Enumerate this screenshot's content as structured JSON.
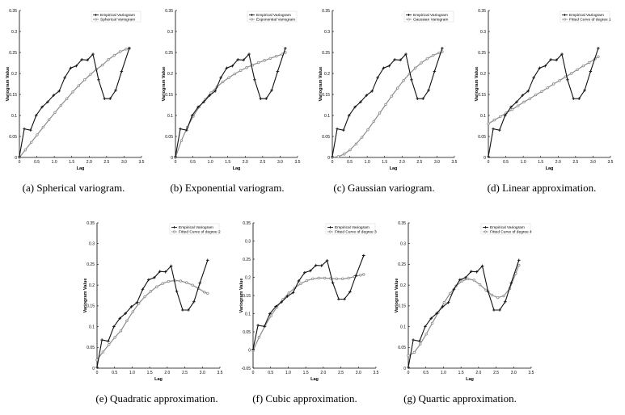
{
  "chart_data": [
    {
      "id": "a",
      "type": "line",
      "caption": "(a)  Spherical variogram.",
      "xlabel": "Lag",
      "ylabel": "Variogram Value",
      "xlim": [
        0,
        3.5
      ],
      "ylim": [
        0,
        0.35
      ],
      "xticks": [
        "0",
        "0.5",
        "1.0",
        "1.5",
        "2.0",
        "2.5",
        "3.0",
        "3.5"
      ],
      "yticks": [
        "0",
        "0.05",
        "0.1",
        "0.15",
        "0.2",
        "0.25",
        "0.3",
        "0.35"
      ],
      "legend": [
        "Empirical Variogram",
        "Spherical Variogram"
      ],
      "series": [
        {
          "name": "Empirical Variogram",
          "style": "empirical",
          "x": [
            0,
            0.14,
            0.32,
            0.48,
            0.65,
            0.81,
            0.98,
            1.14,
            1.3,
            1.47,
            1.63,
            1.79,
            1.95,
            2.11,
            2.27,
            2.44,
            2.6,
            2.76,
            2.93,
            3.15
          ],
          "y": [
            0.002,
            0.068,
            0.065,
            0.1,
            0.12,
            0.132,
            0.148,
            0.158,
            0.19,
            0.213,
            0.218,
            0.233,
            0.232,
            0.246,
            0.185,
            0.14,
            0.14,
            0.16,
            0.205,
            0.26
          ]
        },
        {
          "name": "Spherical Variogram",
          "style": "fitted",
          "x": [
            0,
            0.17,
            0.34,
            0.51,
            0.68,
            0.85,
            1.02,
            1.19,
            1.36,
            1.53,
            1.7,
            1.87,
            2.04,
            2.21,
            2.38,
            2.55,
            2.72,
            2.89,
            3.06,
            3.15
          ],
          "y": [
            0.0,
            0.018,
            0.036,
            0.054,
            0.072,
            0.09,
            0.107,
            0.124,
            0.14,
            0.156,
            0.171,
            0.185,
            0.198,
            0.21,
            0.22,
            0.233,
            0.243,
            0.252,
            0.258,
            0.26
          ]
        }
      ]
    },
    {
      "id": "b",
      "type": "line",
      "caption": "(b)  Exponential variogram.",
      "xlabel": "Lag",
      "ylabel": "Variogram Value",
      "xlim": [
        0,
        3.5
      ],
      "ylim": [
        0,
        0.35
      ],
      "xticks": [
        "0",
        "0.5",
        "1.0",
        "1.5",
        "2.0",
        "2.5",
        "3.0",
        "3.5"
      ],
      "yticks": [
        "0",
        "0.05",
        "0.1",
        "0.15",
        "0.2",
        "0.25",
        "0.3",
        "0.35"
      ],
      "legend": [
        "Empirical Variogram",
        "Exponential Variogram"
      ],
      "series": [
        {
          "name": "Empirical Variogram",
          "style": "empirical",
          "x": [
            0,
            0.14,
            0.32,
            0.48,
            0.65,
            0.81,
            0.98,
            1.14,
            1.3,
            1.47,
            1.63,
            1.79,
            1.95,
            2.11,
            2.27,
            2.44,
            2.6,
            2.76,
            2.93,
            3.15
          ],
          "y": [
            0.002,
            0.068,
            0.065,
            0.1,
            0.12,
            0.132,
            0.148,
            0.158,
            0.19,
            0.213,
            0.218,
            0.233,
            0.232,
            0.246,
            0.185,
            0.14,
            0.14,
            0.16,
            0.205,
            0.26
          ]
        },
        {
          "name": "Exponential Variogram",
          "style": "fitted",
          "x": [
            0,
            0.17,
            0.34,
            0.51,
            0.68,
            0.85,
            1.02,
            1.19,
            1.36,
            1.53,
            1.7,
            1.87,
            2.04,
            2.21,
            2.38,
            2.55,
            2.72,
            2.89,
            3.06,
            3.15
          ],
          "y": [
            0.0,
            0.04,
            0.072,
            0.098,
            0.12,
            0.138,
            0.154,
            0.168,
            0.18,
            0.19,
            0.199,
            0.207,
            0.214,
            0.22,
            0.226,
            0.231,
            0.236,
            0.241,
            0.246,
            0.25
          ]
        }
      ]
    },
    {
      "id": "c",
      "type": "line",
      "caption": "(c)  Gaussian variogram.",
      "xlabel": "Lag",
      "ylabel": "Variogram Value",
      "xlim": [
        0,
        3.5
      ],
      "ylim": [
        0,
        0.35
      ],
      "xticks": [
        "0",
        "0.5",
        "1.0",
        "1.5",
        "2.0",
        "2.5",
        "3.0",
        "3.5"
      ],
      "yticks": [
        "0",
        "0.05",
        "0.1",
        "0.15",
        "0.2",
        "0.25",
        "0.3",
        "0.35"
      ],
      "legend": [
        "Empirical Variogram",
        "Gaussian Variogram"
      ],
      "series": [
        {
          "name": "Empirical Variogram",
          "style": "empirical",
          "x": [
            0,
            0.14,
            0.32,
            0.48,
            0.65,
            0.81,
            0.98,
            1.14,
            1.3,
            1.47,
            1.63,
            1.79,
            1.95,
            2.11,
            2.27,
            2.44,
            2.6,
            2.76,
            2.93,
            3.15
          ],
          "y": [
            0.002,
            0.068,
            0.065,
            0.1,
            0.12,
            0.132,
            0.148,
            0.158,
            0.19,
            0.213,
            0.218,
            0.233,
            0.232,
            0.246,
            0.185,
            0.14,
            0.14,
            0.16,
            0.205,
            0.26
          ]
        },
        {
          "name": "Gaussian Variogram",
          "style": "fitted",
          "x": [
            0,
            0.17,
            0.34,
            0.51,
            0.68,
            0.85,
            1.02,
            1.19,
            1.36,
            1.53,
            1.7,
            1.87,
            2.04,
            2.21,
            2.38,
            2.55,
            2.72,
            2.89,
            3.06,
            3.15
          ],
          "y": [
            0.0,
            0.002,
            0.008,
            0.018,
            0.032,
            0.048,
            0.066,
            0.086,
            0.106,
            0.126,
            0.146,
            0.165,
            0.183,
            0.199,
            0.213,
            0.225,
            0.235,
            0.243,
            0.249,
            0.252
          ]
        }
      ]
    },
    {
      "id": "d",
      "type": "line",
      "caption": "(d)  Linear approximation.",
      "xlabel": "Lag",
      "ylabel": "Variogram Value",
      "xlim": [
        0,
        3.5
      ],
      "ylim": [
        0,
        0.35
      ],
      "xticks": [
        "0",
        "0.5",
        "1.0",
        "1.5",
        "2.0",
        "2.5",
        "3.0",
        "3.5"
      ],
      "yticks": [
        "0",
        "0.05",
        "0.1",
        "0.15",
        "0.2",
        "0.25",
        "0.3",
        "0.35"
      ],
      "legend": [
        "Empirical Variogram",
        "Fitted Curve of degree 1"
      ],
      "series": [
        {
          "name": "Empirical Variogram",
          "style": "empirical",
          "x": [
            0,
            0.14,
            0.32,
            0.48,
            0.65,
            0.81,
            0.98,
            1.14,
            1.3,
            1.47,
            1.63,
            1.79,
            1.95,
            2.11,
            2.27,
            2.44,
            2.6,
            2.76,
            2.93,
            3.15
          ],
          "y": [
            0.002,
            0.068,
            0.065,
            0.1,
            0.12,
            0.132,
            0.148,
            0.158,
            0.19,
            0.213,
            0.218,
            0.233,
            0.232,
            0.246,
            0.185,
            0.14,
            0.14,
            0.16,
            0.205,
            0.26
          ]
        },
        {
          "name": "Fitted Curve of degree 1",
          "style": "fitted",
          "x": [
            0,
            0.17,
            0.34,
            0.51,
            0.68,
            0.85,
            1.02,
            1.19,
            1.36,
            1.53,
            1.7,
            1.87,
            2.04,
            2.21,
            2.38,
            2.55,
            2.72,
            2.89,
            3.06,
            3.15
          ],
          "y": [
            0.08,
            0.089,
            0.097,
            0.106,
            0.114,
            0.123,
            0.132,
            0.14,
            0.149,
            0.157,
            0.166,
            0.175,
            0.183,
            0.192,
            0.2,
            0.209,
            0.218,
            0.226,
            0.235,
            0.24
          ]
        }
      ]
    },
    {
      "id": "e",
      "type": "line",
      "caption": "(e)  Quadratic approximation.",
      "xlabel": "Lag",
      "ylabel": "Variogram Value",
      "xlim": [
        0,
        3.5
      ],
      "ylim": [
        0,
        0.35
      ],
      "xticks": [
        "0",
        "0.5",
        "1.0",
        "1.5",
        "2.0",
        "2.5",
        "3.0",
        "3.5"
      ],
      "yticks": [
        "0",
        "0.05",
        "0.1",
        "0.15",
        "0.2",
        "0.25",
        "0.3",
        "0.35"
      ],
      "legend": [
        "Empirical Variogram",
        "Fitted Curve of degree 2"
      ],
      "series": [
        {
          "name": "Empirical Variogram",
          "style": "empirical",
          "x": [
            0,
            0.14,
            0.32,
            0.48,
            0.65,
            0.81,
            0.98,
            1.14,
            1.3,
            1.47,
            1.63,
            1.79,
            1.95,
            2.11,
            2.27,
            2.44,
            2.6,
            2.76,
            2.93,
            3.15
          ],
          "y": [
            0.002,
            0.068,
            0.065,
            0.1,
            0.12,
            0.132,
            0.148,
            0.158,
            0.19,
            0.213,
            0.218,
            0.233,
            0.232,
            0.246,
            0.185,
            0.14,
            0.14,
            0.16,
            0.205,
            0.26
          ]
        },
        {
          "name": "Fitted Curve of degree 2",
          "style": "fitted",
          "x": [
            0,
            0.17,
            0.34,
            0.51,
            0.68,
            0.85,
            1.02,
            1.19,
            1.36,
            1.53,
            1.7,
            1.87,
            2.04,
            2.21,
            2.38,
            2.55,
            2.72,
            2.89,
            3.06,
            3.15
          ],
          "y": [
            0.02,
            0.039,
            0.057,
            0.074,
            0.09,
            0.114,
            0.136,
            0.156,
            0.172,
            0.185,
            0.196,
            0.204,
            0.209,
            0.211,
            0.21,
            0.206,
            0.2,
            0.192,
            0.183,
            0.18
          ]
        }
      ]
    },
    {
      "id": "f",
      "type": "line",
      "caption": "(f)  Cubic approximation.",
      "xlabel": "Lag",
      "ylabel": "Variogram Value",
      "xlim": [
        0,
        3.5
      ],
      "ylim": [
        -0.05,
        0.35
      ],
      "xticks": [
        "0",
        "0.5",
        "1.0",
        "1.5",
        "2.0",
        "2.5",
        "3.0",
        "3.5"
      ],
      "yticks": [
        "-0.05",
        "0",
        "0.05",
        "0.1",
        "0.15",
        "0.2",
        "0.25",
        "0.3",
        "0.35"
      ],
      "legend": [
        "Empirical Variogram",
        "Fitted Curve of degree 3"
      ],
      "series": [
        {
          "name": "Empirical Variogram",
          "style": "empirical",
          "x": [
            0,
            0.14,
            0.32,
            0.48,
            0.65,
            0.81,
            0.98,
            1.14,
            1.3,
            1.47,
            1.63,
            1.79,
            1.95,
            2.11,
            2.27,
            2.44,
            2.6,
            2.76,
            2.93,
            3.15
          ],
          "y": [
            0.002,
            0.068,
            0.065,
            0.1,
            0.12,
            0.132,
            0.148,
            0.158,
            0.19,
            0.213,
            0.218,
            0.233,
            0.232,
            0.246,
            0.185,
            0.14,
            0.14,
            0.16,
            0.205,
            0.26
          ]
        },
        {
          "name": "Fitted Curve of degree 3",
          "style": "fitted",
          "x": [
            0,
            0.17,
            0.34,
            0.51,
            0.68,
            0.85,
            1.02,
            1.19,
            1.36,
            1.53,
            1.7,
            1.87,
            2.04,
            2.21,
            2.38,
            2.55,
            2.72,
            2.89,
            3.06,
            3.15
          ],
          "y": [
            -0.002,
            0.035,
            0.066,
            0.094,
            0.118,
            0.139,
            0.157,
            0.171,
            0.183,
            0.191,
            0.196,
            0.198,
            0.198,
            0.197,
            0.196,
            0.196,
            0.198,
            0.202,
            0.206,
            0.208
          ]
        }
      ]
    },
    {
      "id": "g",
      "type": "line",
      "caption": "(g)  Quartic approximation.",
      "xlabel": "Lag",
      "ylabel": "Variogram Value",
      "xlim": [
        0,
        3.5
      ],
      "ylim": [
        0,
        0.35
      ],
      "xticks": [
        "0",
        "0.5",
        "1.0",
        "1.5",
        "2.0",
        "2.5",
        "3.0",
        "3.5"
      ],
      "yticks": [
        "0",
        "0.05",
        "0.1",
        "0.15",
        "0.2",
        "0.25",
        "0.3",
        "0.35"
      ],
      "legend": [
        "Empirical Variogram",
        "Fitted Curve of degree 4"
      ],
      "series": [
        {
          "name": "Empirical Variogram",
          "style": "empirical",
          "x": [
            0,
            0.14,
            0.32,
            0.48,
            0.65,
            0.81,
            0.98,
            1.14,
            1.3,
            1.47,
            1.63,
            1.79,
            1.95,
            2.11,
            2.27,
            2.44,
            2.6,
            2.76,
            2.93,
            3.15
          ],
          "y": [
            0.002,
            0.068,
            0.065,
            0.1,
            0.12,
            0.132,
            0.148,
            0.158,
            0.19,
            0.213,
            0.218,
            0.233,
            0.232,
            0.246,
            0.185,
            0.14,
            0.14,
            0.16,
            0.205,
            0.26
          ]
        },
        {
          "name": "Fitted Curve of degree 4",
          "style": "fitted",
          "x": [
            0,
            0.17,
            0.34,
            0.51,
            0.68,
            0.85,
            1.02,
            1.19,
            1.36,
            1.53,
            1.7,
            1.87,
            2.04,
            2.21,
            2.38,
            2.55,
            2.72,
            2.89,
            3.06,
            3.15
          ],
          "y": [
            0.03,
            0.038,
            0.058,
            0.082,
            0.108,
            0.134,
            0.158,
            0.18,
            0.198,
            0.21,
            0.215,
            0.212,
            0.201,
            0.188,
            0.176,
            0.17,
            0.174,
            0.192,
            0.228,
            0.248
          ]
        }
      ]
    }
  ],
  "colors": {
    "empirical": "#111111",
    "fitted": "#8c8c8c"
  }
}
